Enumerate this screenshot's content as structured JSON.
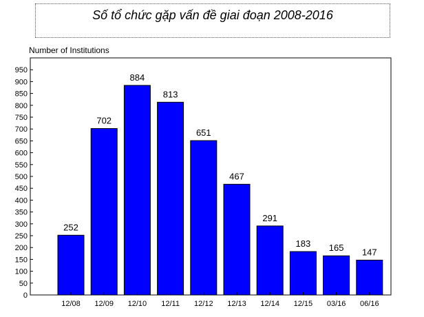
{
  "chart_data": {
    "type": "bar",
    "title": "Số tổ chức gặp vấn đề giai đoạn 2008-2016",
    "ylabel": "Number of Institutions",
    "xlabel": "",
    "categories": [
      "12/08",
      "12/09",
      "12/10",
      "12/11",
      "12/12",
      "12/13",
      "12/14",
      "12/15",
      "03/16",
      "06/16"
    ],
    "values": [
      252,
      702,
      884,
      813,
      651,
      467,
      291,
      183,
      165,
      147
    ],
    "ylim": [
      0,
      1000
    ],
    "yticks": [
      0,
      50,
      100,
      150,
      200,
      250,
      300,
      350,
      400,
      450,
      500,
      550,
      600,
      650,
      700,
      750,
      800,
      850,
      900,
      950
    ],
    "grid": false,
    "legend": "none",
    "bar_color": "#0000ff",
    "data_labels": true
  }
}
